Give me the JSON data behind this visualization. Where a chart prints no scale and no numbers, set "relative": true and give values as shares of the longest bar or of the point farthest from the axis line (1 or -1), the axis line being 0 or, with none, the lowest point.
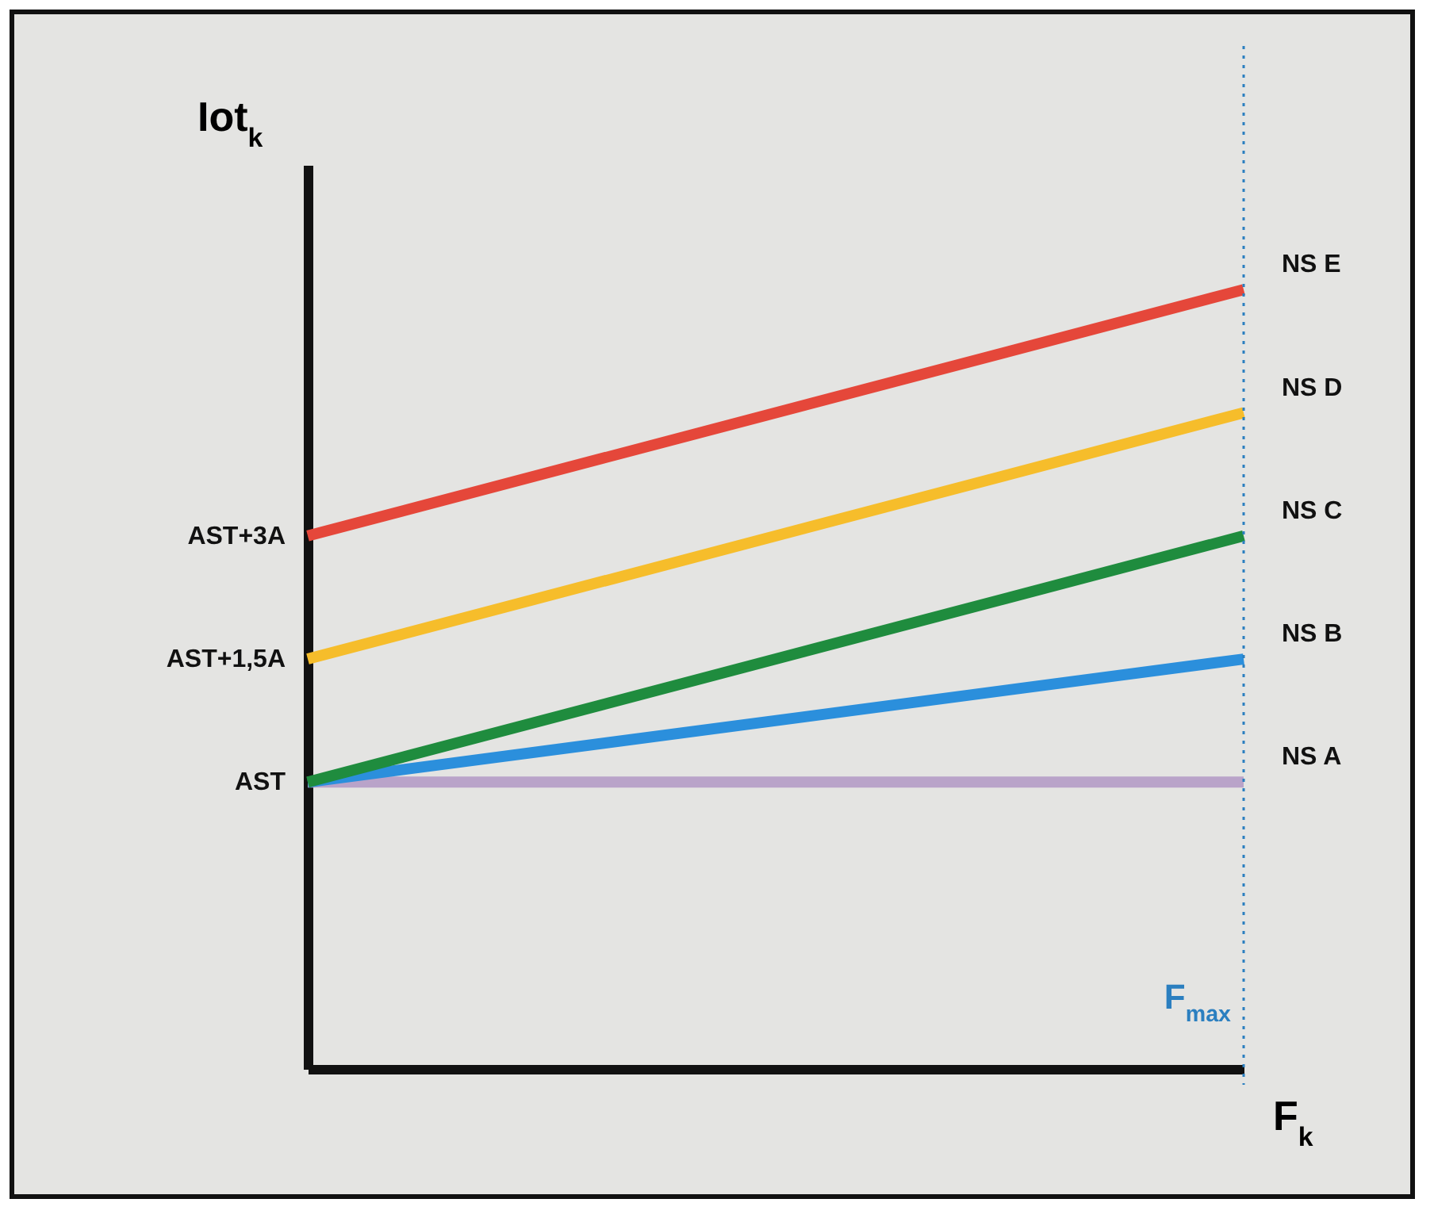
{
  "chart_data": {
    "type": "line",
    "relative": true,
    "xlabel": "F$_{k}$",
    "ylabel": "Iot$_{k}$",
    "categories": [
      null,
      null
    ],
    "annotations": [
      "AST",
      "AST+1,5A",
      "AST+3A"
    ],
    "tick_labels": false,
    "line_style": "solid",
    "series": [
      {
        "name": "NS A",
        "color": "#b9a3c9",
        "values": [
          0.368,
          0.368
        ]
      },
      {
        "name": "NS B",
        "color": "#2b8fdc",
        "values": [
          0.368,
          0.526
        ]
      },
      {
        "name": "NS C",
        "color": "#1f8c3e",
        "values": [
          0.368,
          0.684
        ]
      },
      {
        "name": "NS D",
        "color": "#f6bd2b",
        "values": [
          0.526,
          0.842
        ]
      },
      {
        "name": "NS E",
        "color": "#e5473a",
        "values": [
          0.684,
          1
        ]
      }
    ],
    "ref_lines": [
      {
        "axis": "x",
        "label": "F$_{max}$",
        "color": "#2b7fc0",
        "line_style": "dotted"
      }
    ]
  }
}
